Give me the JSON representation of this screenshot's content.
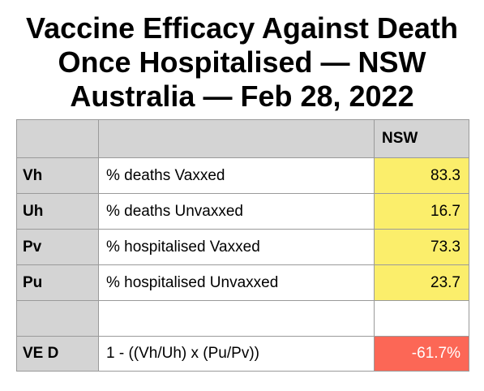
{
  "title": {
    "line1": "Vaccine Efficacy Against Death",
    "line2": "Once Hospitalised — NSW",
    "line3": "Australia — Feb 28, 2022"
  },
  "table": {
    "header": {
      "col1": "",
      "col2": "",
      "col3": "NSW"
    },
    "rows": [
      {
        "code": "Vh",
        "label": "% deaths Vaxxed",
        "value": "83.3"
      },
      {
        "code": "Uh",
        "label": "% deaths Unvaxxed",
        "value": "16.7"
      },
      {
        "code": "Pv",
        "label": "% hospitalised Vaxxed",
        "value": "73.3"
      },
      {
        "code": "Pu",
        "label": "% hospitalised Unvaxxed",
        "value": "23.7"
      },
      {
        "code": "",
        "label": "",
        "value": ""
      },
      {
        "code": "VE D",
        "label": "1 - ((Vh/Uh) x (Pu/Pv))",
        "value": "-61.7%"
      }
    ]
  },
  "colors": {
    "header_bg": "#d4d4d4",
    "value_highlight": "#fbee6b",
    "result_highlight": "#fc6756",
    "result_text": "#ffffff"
  }
}
